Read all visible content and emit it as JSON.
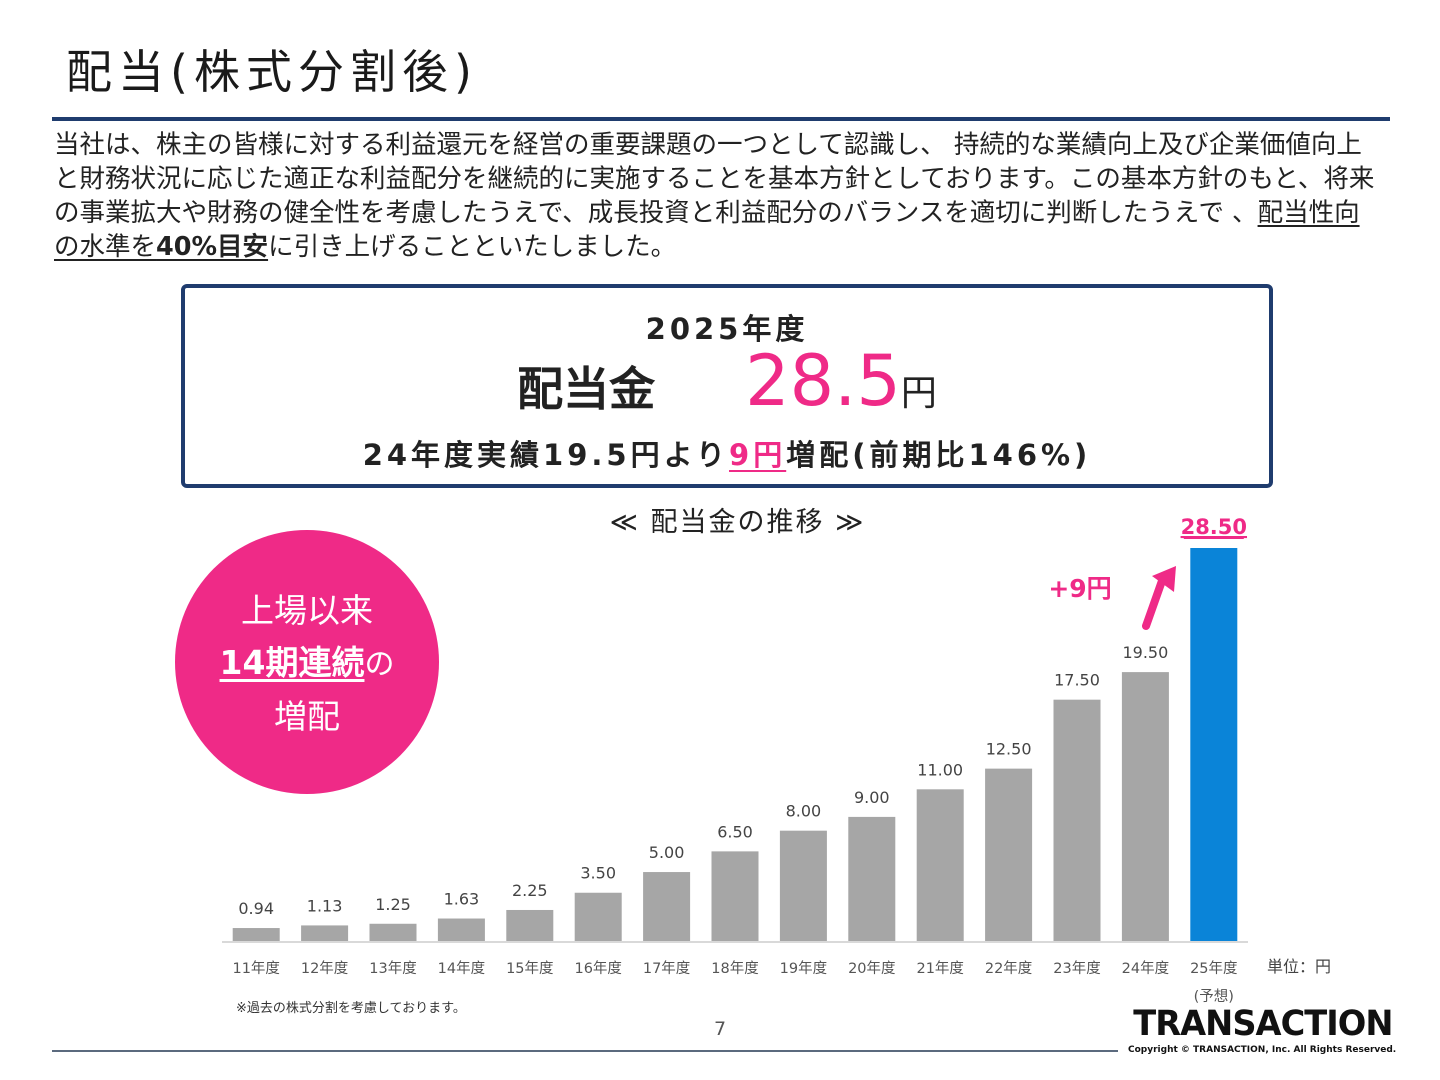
{
  "header": {
    "title": "配当(株式分割後)"
  },
  "intro": {
    "text_1": "当社は、株主の皆様に対する利益還元を経営の重要課題の一つとして認識し、 持続的な業績向上及び企業価値向上と財務状況に応じた適正な利益配分を継続的に実施することを基本方針としております。この基本方針のもと、将来の事業拡大や財務の健全性を考慮したうえで、成長投資と利益配分のバランスを適切に判断したうえで 、",
    "underline": "配当性向の水準を",
    "bold": "40%目安",
    "text_2": "に引き上げることといたしました。"
  },
  "summary": {
    "year": "2025年度",
    "label": "配当金",
    "value": "28.5",
    "unit": "円",
    "note_prefix": "24年度実績19.5円より",
    "note_highlight": "9円",
    "note_suffix": "増配(前期比146%)"
  },
  "badge": {
    "line1": "上場以来",
    "line2_highlight": "14期連続",
    "line2_suffix": "の",
    "line3": "増配"
  },
  "chart_data": {
    "type": "bar",
    "title": "≪ 配当金の推移 ≫",
    "categories": [
      "11年度",
      "12年度",
      "13年度",
      "14年度",
      "15年度",
      "16年度",
      "17年度",
      "18年度",
      "19年度",
      "20年度",
      "21年度",
      "22年度",
      "23年度",
      "24年度",
      "25年度"
    ],
    "category_sub": [
      "",
      "",
      "",
      "",
      "",
      "",
      "",
      "",
      "",
      "",
      "",
      "",
      "",
      "",
      "(予想)"
    ],
    "values": [
      0.94,
      1.13,
      1.25,
      1.63,
      2.25,
      3.5,
      5.0,
      6.5,
      8.0,
      9.0,
      11.0,
      12.5,
      17.5,
      19.5,
      28.5
    ],
    "data_labels": [
      "0.94",
      "1.13",
      "1.25",
      "1.63",
      "2.25",
      "3.50",
      "5.00",
      "6.50",
      "8.00",
      "9.00",
      "11.00",
      "12.50",
      "17.50",
      "19.50",
      "28.50"
    ],
    "ylim": [
      0,
      28.5
    ],
    "grid": false,
    "colors": {
      "bar": "#a6a6a6",
      "highlight": "#0a84d8",
      "accent": "#ef2a87"
    },
    "highlight_index": 14,
    "annotation": "+9円",
    "unit_label": "単位：円"
  },
  "footer": {
    "note": "※過去の株式分割を考慮しております。",
    "page": "7",
    "logo": "TRANSACTION",
    "copyright": "Copyright © TRANSACTION, Inc. All Rights Reserved."
  }
}
